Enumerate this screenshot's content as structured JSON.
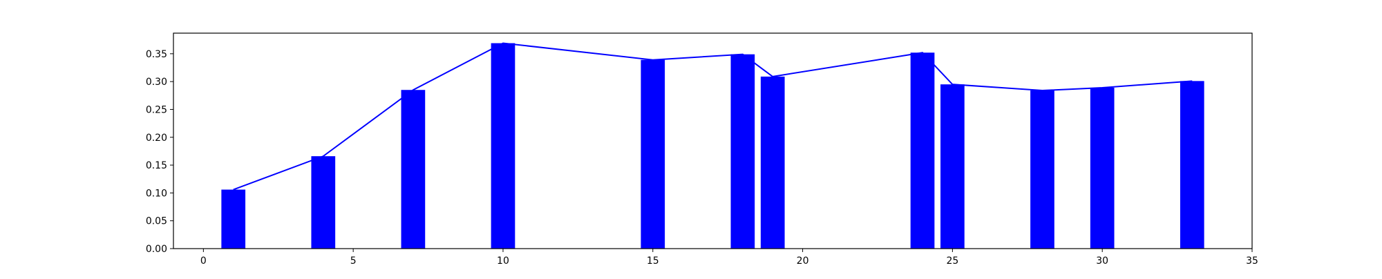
{
  "chart_data": {
    "type": "bar",
    "title": "",
    "xlabel": "",
    "ylabel": "",
    "xlim": [
      -1,
      35
    ],
    "ylim": [
      0,
      0.387
    ],
    "x_ticks": [
      0,
      5,
      10,
      15,
      20,
      25,
      30,
      35
    ],
    "y_ticks": [
      0.0,
      0.05,
      0.1,
      0.15,
      0.2,
      0.25,
      0.3,
      0.35
    ],
    "grid": false,
    "bar_width": 0.8,
    "bar_color": "#0000ff",
    "line_color": "#0000ff",
    "x": [
      1,
      4,
      7,
      10,
      15,
      18,
      19,
      24,
      25,
      28,
      30,
      33
    ],
    "values": [
      0.106,
      0.166,
      0.285,
      0.369,
      0.339,
      0.349,
      0.309,
      0.352,
      0.295,
      0.284,
      0.289,
      0.301
    ],
    "overlay_line": {
      "x": [
        1,
        4,
        7,
        10,
        15,
        18,
        19,
        24,
        25,
        28,
        30,
        33
      ],
      "values": [
        0.106,
        0.166,
        0.285,
        0.369,
        0.339,
        0.349,
        0.309,
        0.352,
        0.295,
        0.284,
        0.289,
        0.301
      ]
    }
  }
}
